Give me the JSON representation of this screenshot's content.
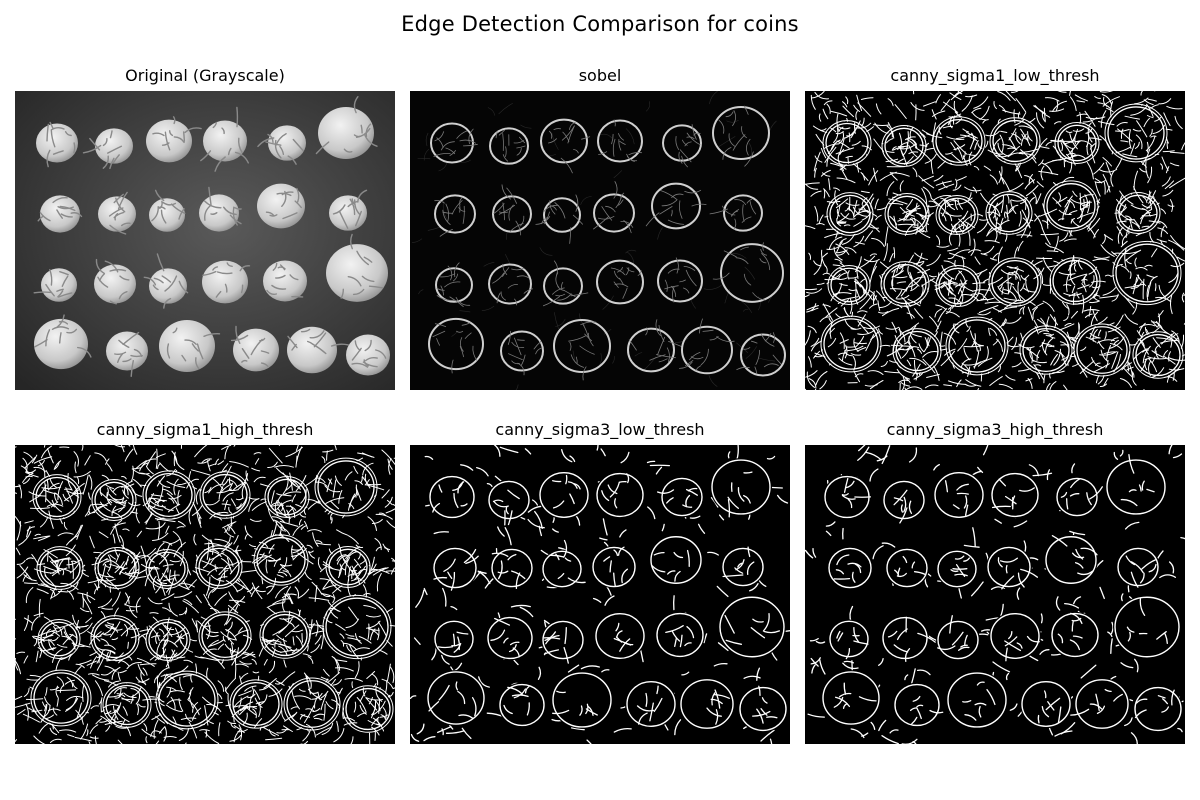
{
  "figure": {
    "title": "Edge Detection Comparison for coins"
  },
  "panels": [
    {
      "title": "Original (Grayscale)",
      "style": "grayscale"
    },
    {
      "title": "sobel",
      "style": "sobel"
    },
    {
      "title": "canny_sigma1_low_thresh",
      "style": "canny_dense"
    },
    {
      "title": "canny_sigma1_high_thresh",
      "style": "canny_dense"
    },
    {
      "title": "canny_sigma3_low_thresh",
      "style": "canny_sparse"
    },
    {
      "title": "canny_sigma3_high_thresh",
      "style": "canny_sparse"
    }
  ],
  "colors": {
    "background": "#ffffff",
    "edge": "#ffffff",
    "dark": "#000000"
  }
}
